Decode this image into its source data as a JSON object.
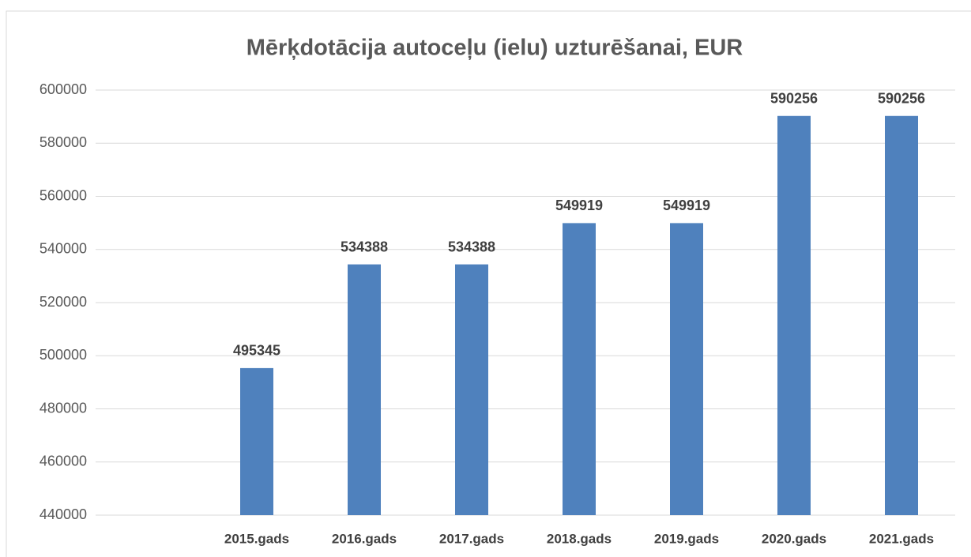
{
  "chart_data": {
    "type": "bar",
    "title": "Mērķdotācija autoceļu (ielu) uzturēšanai, EUR",
    "categories": [
      null,
      "2015.gads",
      "2016.gads",
      "2017.gads",
      "2018.gads",
      "2019.gads",
      "2020.gads",
      "2021.gads"
    ],
    "values": [
      null,
      495345,
      534388,
      534388,
      549919,
      549919,
      590256,
      590256
    ],
    "color": "#4f81bd",
    "ylim": [
      440000,
      600000
    ],
    "yticks": [
      440000,
      460000,
      480000,
      500000,
      520000,
      540000,
      560000,
      580000,
      600000
    ],
    "grid": true
  }
}
